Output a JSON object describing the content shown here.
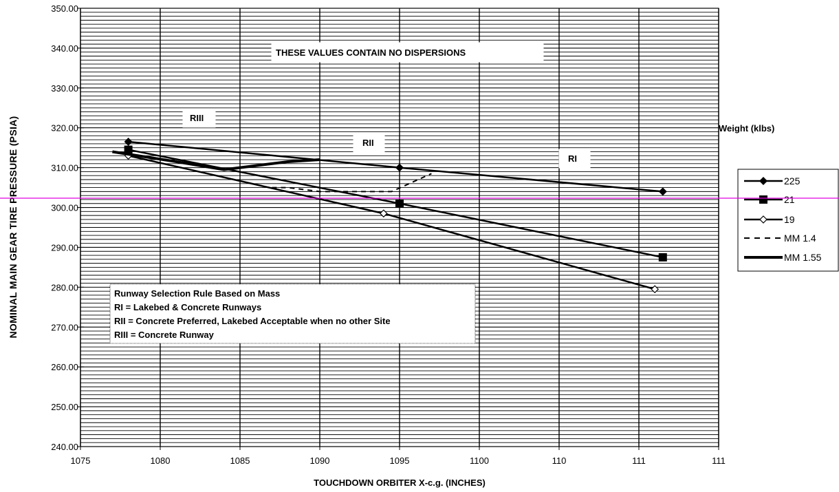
{
  "chart_data": {
    "type": "line",
    "title": "",
    "xlabel": "TOUCHDOWN ORBITER X-c.g. (INCHES)",
    "ylabel": "NOMINAL MAIN GEAR TIRE PRESSURE (PSIA)",
    "ylim": [
      240,
      350
    ],
    "y_ticks": [
      "240.00",
      "250.00",
      "260.00",
      "270.00",
      "280.00",
      "290.00",
      "300.00",
      "310.00",
      "320.00",
      "330.00",
      "340.00",
      "350.00"
    ],
    "x_tick_labels": [
      "1075",
      "1080",
      "1085",
      "1090",
      "1095",
      "1100",
      "110",
      "111",
      "111"
    ],
    "legend_title": "Weight (klbs)",
    "series": [
      {
        "name": "225",
        "marker": "diamond-filled",
        "style": "solid",
        "width": 2.5,
        "points": [
          [
            1078,
            316.5
          ],
          [
            1095,
            310
          ],
          [
            1111.5,
            304
          ]
        ]
      },
      {
        "name": "21",
        "marker": "square-filled",
        "style": "solid",
        "width": 2.5,
        "points": [
          [
            1078,
            314.5
          ],
          [
            1095,
            301
          ],
          [
            1111.5,
            287.5
          ]
        ]
      },
      {
        "name": "19",
        "marker": "diamond-open",
        "style": "solid",
        "width": 2.5,
        "points": [
          [
            1078,
            313
          ],
          [
            1094,
            298.5
          ],
          [
            1111,
            279.5
          ]
        ]
      },
      {
        "name": "MM 1.4",
        "marker": "none",
        "style": "dashed",
        "width": 2,
        "points": [
          [
            1087,
            305
          ],
          [
            1088,
            305
          ],
          [
            1090,
            304
          ],
          [
            1092.5,
            304
          ],
          [
            1094.5,
            304
          ],
          [
            1097,
            308.5
          ]
        ]
      },
      {
        "name": "MM 1.55",
        "marker": "none",
        "style": "solid",
        "width": 4,
        "points": [
          [
            1077,
            314
          ],
          [
            1081,
            311.5
          ],
          [
            1084,
            309.5
          ],
          [
            1086,
            310.5
          ],
          [
            1088,
            311.5
          ],
          [
            1090,
            312
          ]
        ]
      }
    ],
    "annotations": [
      {
        "text": "THESE VALUES CONTAIN NO DISPERSIONS"
      },
      {
        "text": "RIII"
      },
      {
        "text": "RII"
      },
      {
        "text": "RI"
      }
    ],
    "notes_box": [
      "Runway Selection Rule Based on Mass",
      "RI = Lakebed & Concrete Runways",
      "RII = Concrete Preferred, Lakebed Acceptable when no other Site",
      "RIII = Concrete Runway"
    ],
    "grid": true,
    "legend_position": "right",
    "colors": {
      "line": "#000000",
      "grid": "#000000",
      "guide": "#e000e0"
    }
  }
}
